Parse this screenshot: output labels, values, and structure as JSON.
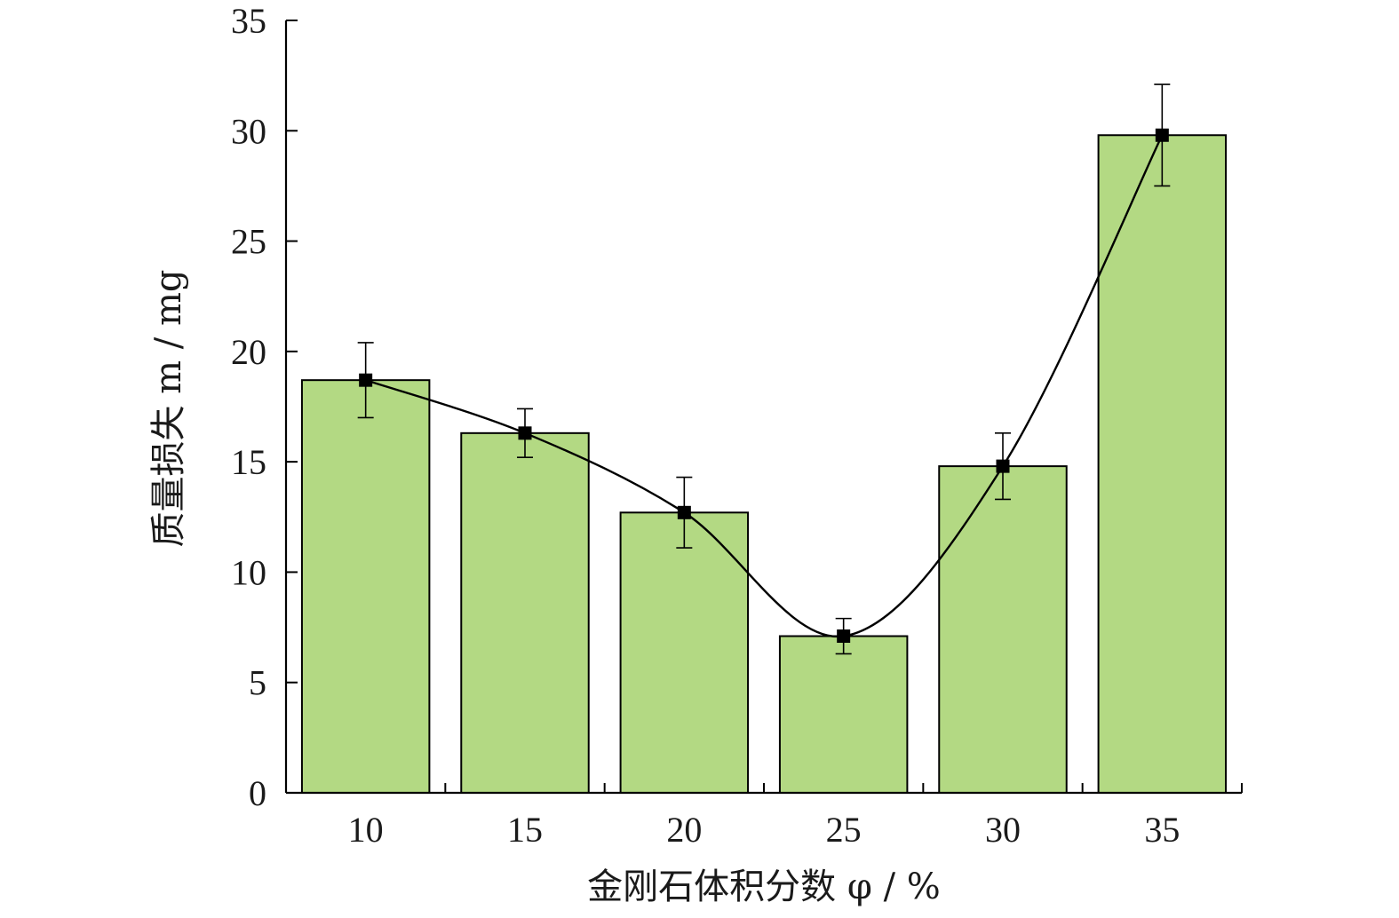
{
  "chart_data": {
    "type": "bar",
    "categories": [
      "10",
      "15",
      "20",
      "25",
      "30",
      "35"
    ],
    "x": [
      10,
      15,
      20,
      25,
      30,
      35
    ],
    "values": [
      18.7,
      16.3,
      12.7,
      7.1,
      14.8,
      29.8
    ],
    "error": [
      1.7,
      1.1,
      1.6,
      0.8,
      1.5,
      2.3
    ],
    "xlabel": "金刚石体积分数 φ / %",
    "ylabel": "质量损失 m / mg",
    "ylim": [
      0,
      35
    ],
    "yticks": [
      0,
      5,
      10,
      15,
      20,
      25,
      30,
      35
    ],
    "grid": false,
    "line_overlay": true,
    "colors": {
      "bar": "#b3d983",
      "line": "#000000",
      "marker": "#000000"
    }
  }
}
